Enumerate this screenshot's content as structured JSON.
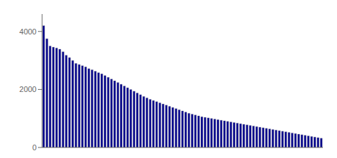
{
  "chart_data": {
    "type": "bar",
    "values": [
      4200,
      3750,
      3500,
      3460,
      3430,
      3390,
      3300,
      3180,
      3100,
      3000,
      2900,
      2860,
      2820,
      2780,
      2720,
      2680,
      2630,
      2580,
      2540,
      2480,
      2420,
      2360,
      2300,
      2240,
      2180,
      2120,
      2060,
      2000,
      1940,
      1880,
      1820,
      1760,
      1710,
      1660,
      1620,
      1580,
      1540,
      1500,
      1460,
      1420,
      1380,
      1340,
      1300,
      1260,
      1220,
      1180,
      1150,
      1120,
      1090,
      1060,
      1040,
      1020,
      1000,
      980,
      960,
      940,
      920,
      900,
      880,
      860,
      840,
      820,
      800,
      780,
      760,
      740,
      720,
      700,
      680,
      660,
      640,
      620,
      600,
      580,
      560,
      540,
      520,
      500,
      480,
      460,
      440,
      420,
      400,
      380,
      360,
      340,
      320
    ],
    "color": "#00008B",
    "ylim": [
      0,
      4600
    ],
    "yticks": [
      0,
      2000,
      4000
    ],
    "grid": false,
    "tick_labels": "y"
  }
}
